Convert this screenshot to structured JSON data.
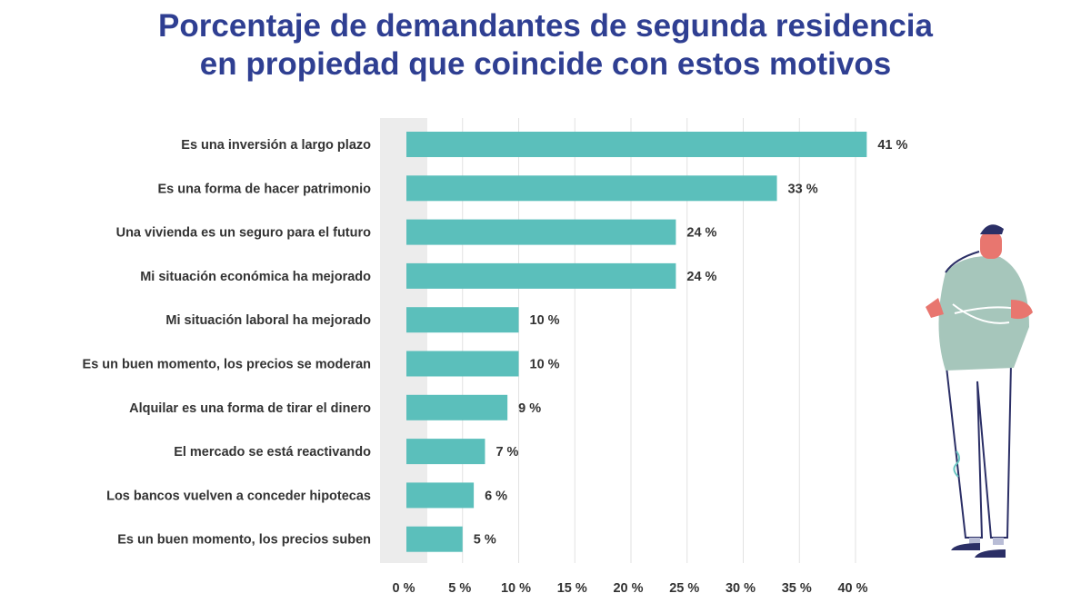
{
  "chart_data": {
    "type": "bar",
    "orientation": "horizontal",
    "title": "Porcentaje de demandantes de segunda residencia en propiedad que coincide con estos motivos",
    "title_lines": [
      "Porcentaje de demandantes de segunda residencia",
      "en propiedad que coincide con estos motivos"
    ],
    "categories": [
      "Es una inversión a largo plazo",
      "Es una forma de hacer patrimonio",
      "Una vivienda es un seguro para el futuro",
      "Mi situación económica ha mejorado",
      "Mi situación laboral ha mejorado",
      "Es un buen momento, los precios se moderan",
      "Alquilar es una forma de tirar el dinero",
      "El mercado se está reactivando",
      "Los bancos vuelven a conceder hipotecas",
      "Es un buen momento, los precios suben"
    ],
    "values": [
      41,
      33,
      24,
      24,
      10,
      10,
      9,
      7,
      6,
      5
    ],
    "value_labels": [
      "41 %",
      "33 %",
      "24 %",
      "24 %",
      "10 %",
      "10 %",
      "9 %",
      "7 %",
      "6 %",
      "5 %"
    ],
    "xticks": [
      0,
      5,
      10,
      15,
      20,
      25,
      30,
      35,
      40
    ],
    "xtick_labels": [
      "0 %",
      "5 %",
      "10 %",
      "15 %",
      "20 %",
      "25 %",
      "30 %",
      "35 %",
      "40 %"
    ],
    "xlim": [
      0,
      42
    ],
    "grid": "vertical",
    "xlabel": "",
    "ylabel": "",
    "colors": {
      "bar": "#5bbfbb",
      "title": "#2f3f92",
      "grid": "#e2e2e2",
      "band": "#ececec"
    }
  },
  "illustration": "person-standing-arms-crossed"
}
